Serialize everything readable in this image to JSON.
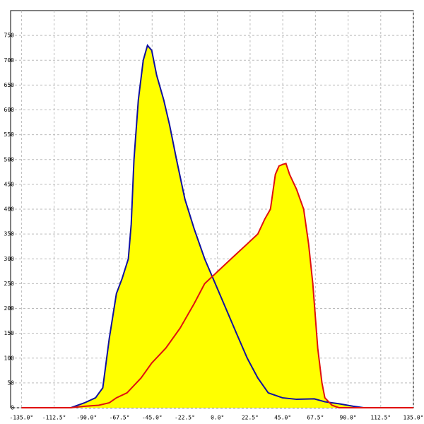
{
  "chart_data": {
    "type": "area",
    "xlim": [
      -142.5,
      135
    ],
    "ylim": [
      0,
      800
    ],
    "xticks": [
      {
        "value": -135,
        "label": "-135.0°"
      },
      {
        "value": -112.5,
        "label": "-112.5°"
      },
      {
        "value": -90,
        "label": "-90.0°"
      },
      {
        "value": -67.5,
        "label": "-67.5°"
      },
      {
        "value": -45,
        "label": "-45.0°"
      },
      {
        "value": -22.5,
        "label": "-22.5°"
      },
      {
        "value": 0,
        "label": "0.0°"
      },
      {
        "value": 22.5,
        "label": "22.5°"
      },
      {
        "value": 45,
        "label": "45.0°"
      },
      {
        "value": 67.5,
        "label": "67.5°"
      },
      {
        "value": 90,
        "label": "90.0°"
      },
      {
        "value": 112.5,
        "label": "112.5°"
      },
      {
        "value": 135,
        "label": "135.0°"
      }
    ],
    "yticks": [
      0,
      50,
      100,
      150,
      200,
      250,
      300,
      350,
      400,
      450,
      500,
      550,
      600,
      650,
      700,
      750
    ],
    "grid": true,
    "fill": "#ffff00",
    "series": [
      {
        "color": "#1010a0",
        "x": [
          -101,
          -91.5,
          -84,
          -79,
          -74.5,
          -69.6,
          -65.7,
          -61.4,
          -59.4,
          -57.5,
          -54.5,
          -51.1,
          -48.2,
          -45.3,
          -41.9,
          -37,
          -33,
          -28.2,
          -22.4,
          -16,
          -8.8,
          -1.5,
          5.8,
          13.1,
          20.5,
          27.8,
          35,
          44.8,
          54.5,
          66.7,
          74,
          83.8,
          93.5,
          100.8
        ],
        "values": [
          0,
          10,
          20,
          40,
          140,
          230,
          260,
          300,
          370,
          500,
          620,
          700,
          730,
          720,
          670,
          620,
          570,
          500,
          420,
          360,
          300,
          250,
          200,
          150,
          100,
          60,
          30,
          20,
          17,
          18,
          12,
          8,
          3,
          0
        ]
      },
      {
        "color": "#e01010",
        "x": [
          -135,
          -101,
          -91.5,
          -81.8,
          -74.5,
          -69.6,
          -62.3,
          -52.6,
          -45.3,
          -35.6,
          -25.8,
          -16,
          -8.8,
          -1.5,
          5.8,
          13.1,
          20.5,
          27.8,
          32.6,
          36.5,
          39.9,
          42.4,
          44.8,
          47.2,
          49.7,
          54.5,
          59.4,
          62.8,
          65.7,
          69.1,
          72,
          74,
          78.9,
          83.8,
          135
        ],
        "values": [
          0,
          0,
          3,
          5,
          10,
          20,
          30,
          60,
          90,
          120,
          160,
          210,
          250,
          270,
          290,
          310,
          330,
          350,
          380,
          400,
          470,
          487,
          490,
          492,
          470,
          440,
          400,
          330,
          250,
          120,
          50,
          20,
          5,
          0,
          0
        ]
      }
    ]
  }
}
